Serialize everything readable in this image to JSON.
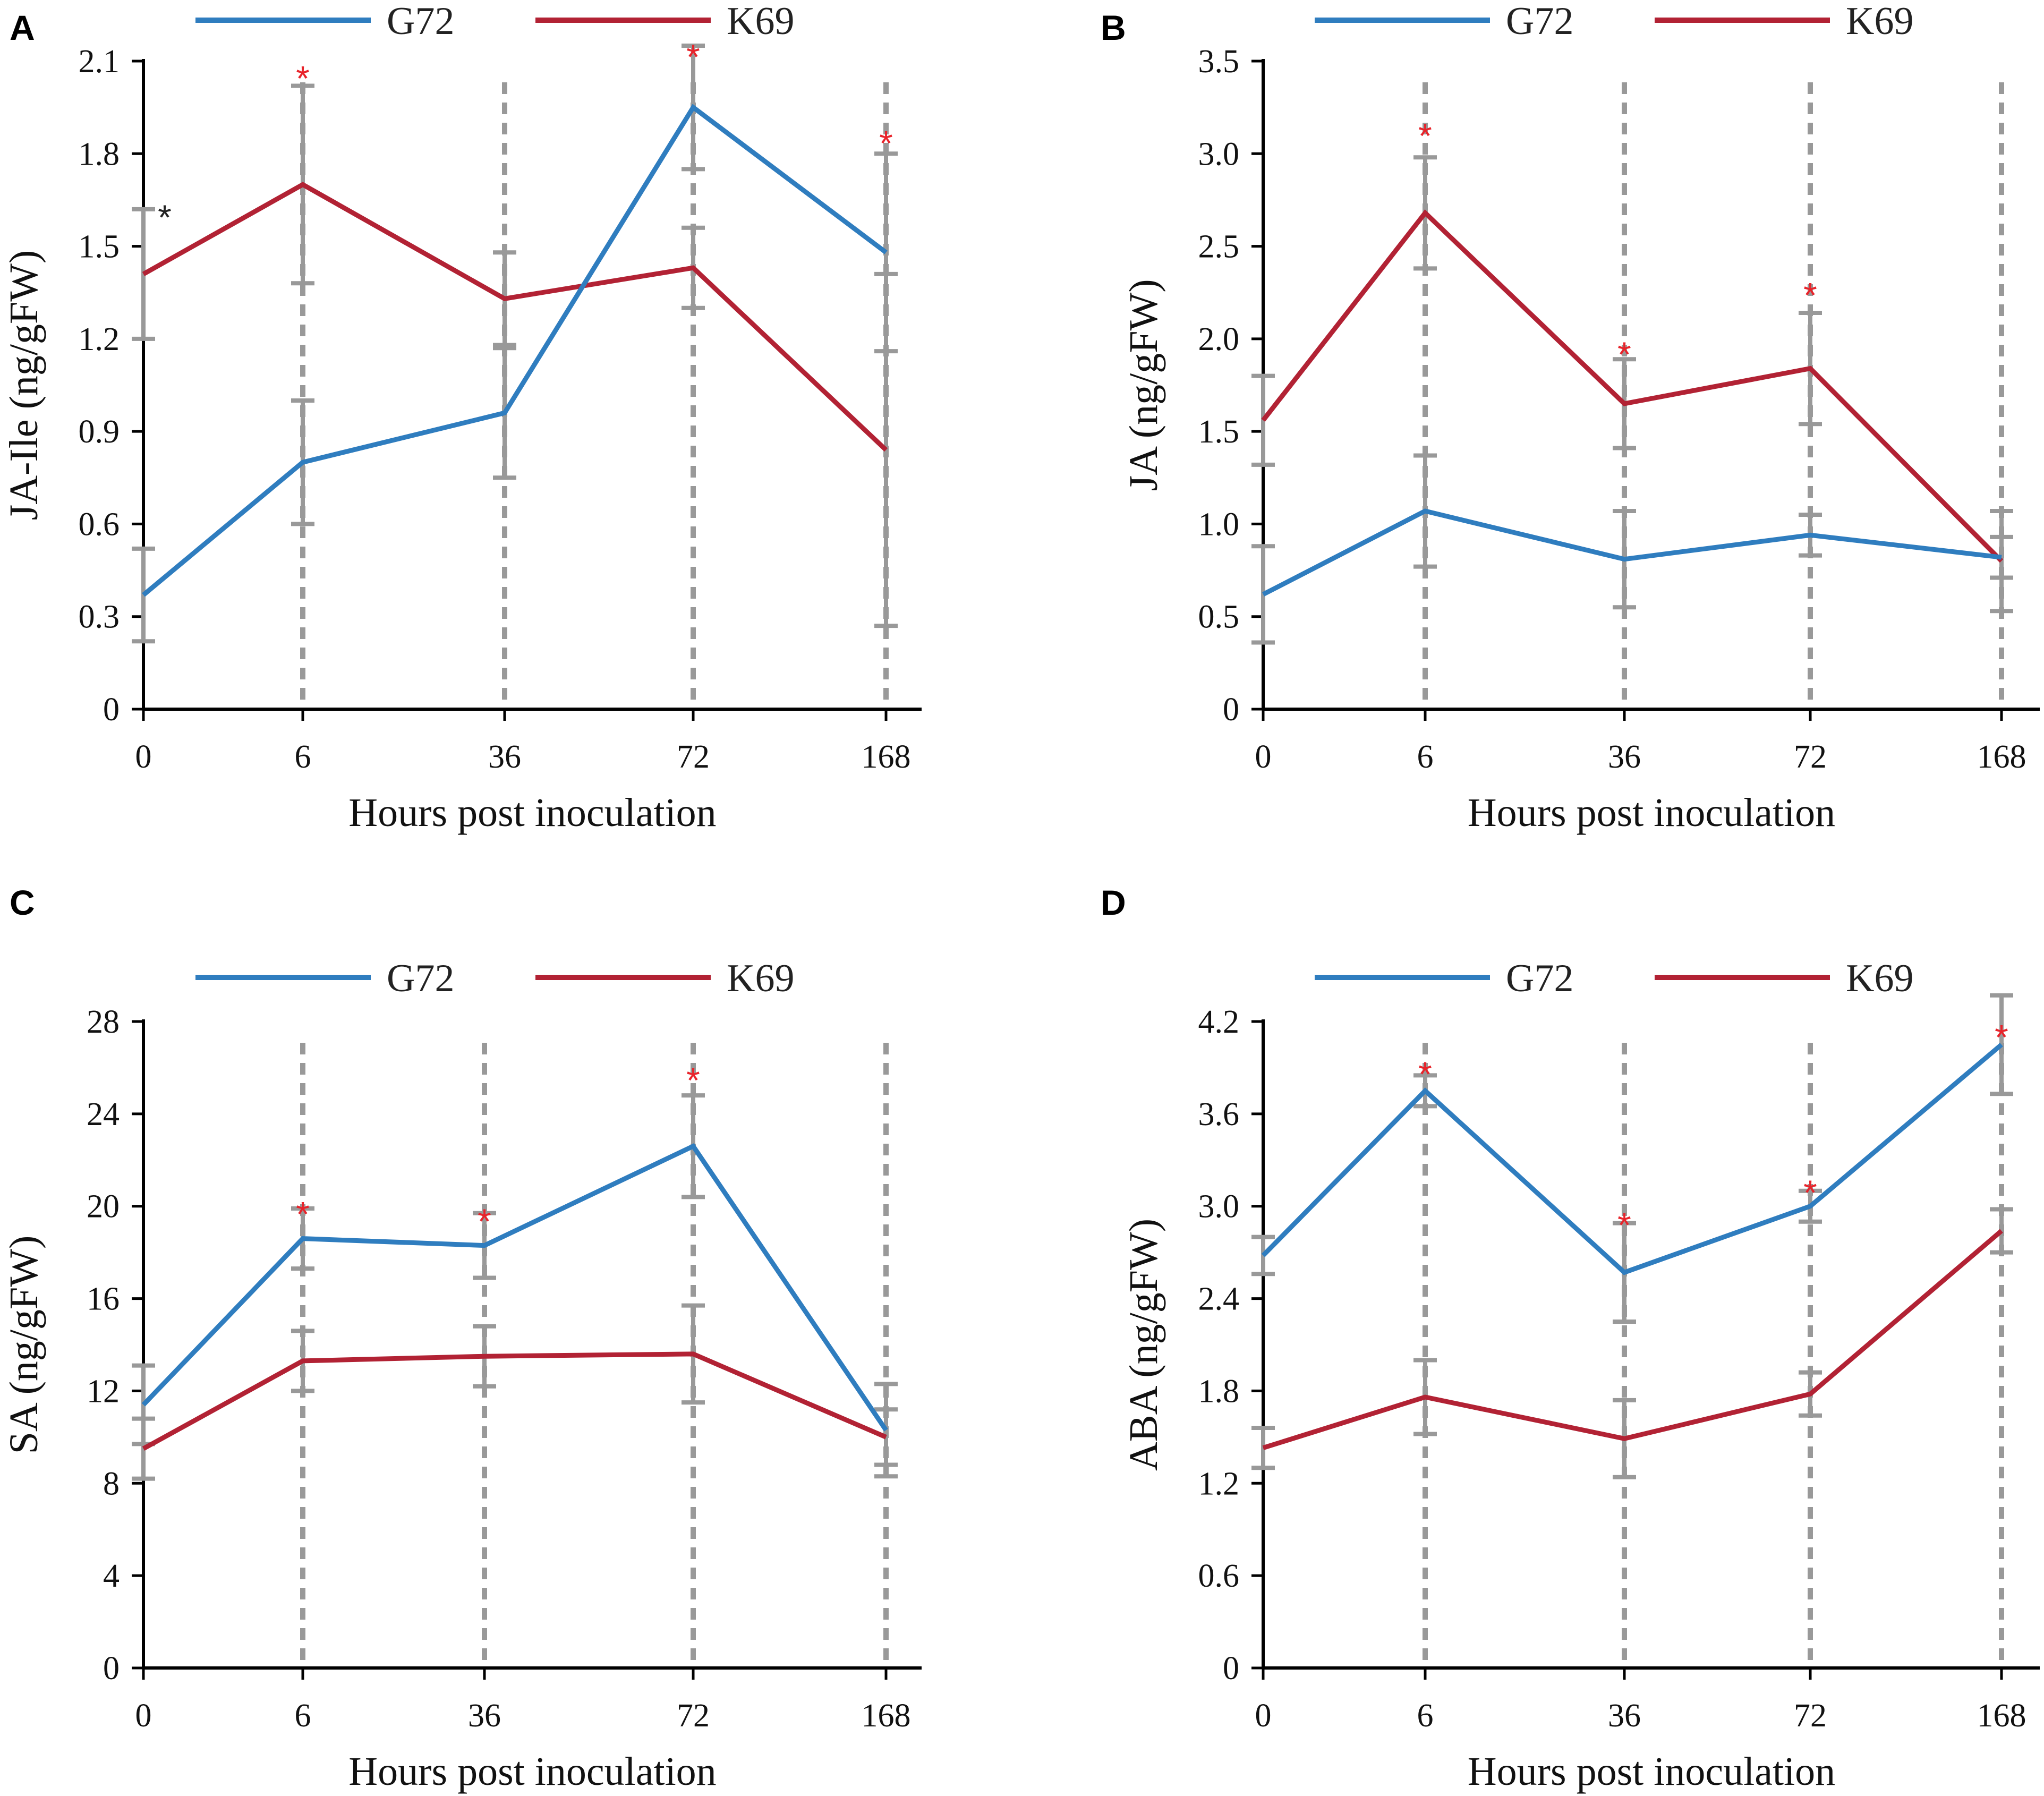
{
  "colors": {
    "g72": "#2F7DBF",
    "k69": "#B22234",
    "guide": "#999999",
    "sig_red": "#E8232A",
    "sig_black": "#222222"
  },
  "chart_data": [
    {
      "panel": "A",
      "type": "line",
      "categories": [
        "0",
        "6",
        "36",
        "72",
        "168"
      ],
      "xlabel": "Hours post inoculation",
      "ylabel": "JA-Ile (ng/gFW)",
      "ylim": [
        0,
        2.1
      ],
      "yticks": [
        "0",
        "0.3",
        "0.6",
        "0.9",
        "1.2",
        "1.5",
        "1.8",
        "2.1"
      ],
      "legend": [
        "G72",
        "K69"
      ],
      "series": [
        {
          "name": "G72",
          "values": [
            0.37,
            0.8,
            0.96,
            1.95,
            1.48
          ],
          "err": [
            0.15,
            0.2,
            0.21,
            0.2,
            0.32
          ]
        },
        {
          "name": "K69",
          "values": [
            1.41,
            1.7,
            1.33,
            1.43,
            0.84
          ],
          "err": [
            0.21,
            0.32,
            0.15,
            0.13,
            0.57
          ]
        }
      ],
      "significance": [
        {
          "x": 0,
          "value": 1.62,
          "mark": "*",
          "color": "black"
        },
        {
          "x": 1,
          "value": 2.07,
          "mark": "*",
          "color": "red"
        },
        {
          "x": 3,
          "value": 2.14,
          "mark": "*",
          "color": "red"
        },
        {
          "x": 4,
          "value": 1.86,
          "mark": "*",
          "color": "red"
        }
      ]
    },
    {
      "panel": "B",
      "type": "line",
      "categories": [
        "0",
        "6",
        "36",
        "72",
        "168"
      ],
      "xlabel": "Hours post inoculation",
      "ylabel": "JA (ng/gFW)",
      "ylim": [
        0,
        3.5
      ],
      "yticks": [
        "0",
        "0.5",
        "1.0",
        "1.5",
        "2.0",
        "2.5",
        "3.0",
        "3.5"
      ],
      "legend": [
        "G72",
        "K69"
      ],
      "series": [
        {
          "name": "G72",
          "values": [
            0.62,
            1.07,
            0.81,
            0.94,
            0.82
          ],
          "err": [
            0.26,
            0.3,
            0.26,
            0.11,
            0.11
          ]
        },
        {
          "name": "K69",
          "values": [
            1.56,
            2.68,
            1.65,
            1.84,
            0.8
          ],
          "err": [
            0.24,
            0.3,
            0.24,
            0.3,
            0.27
          ]
        }
      ],
      "significance": [
        {
          "x": 1,
          "value": 3.14,
          "mark": "*",
          "color": "red"
        },
        {
          "x": 2,
          "value": 1.96,
          "mark": "*",
          "color": "red"
        },
        {
          "x": 3,
          "value": 2.28,
          "mark": "*",
          "color": "red"
        }
      ]
    },
    {
      "panel": "C",
      "type": "line",
      "categories": [
        "0",
        "6",
        "36",
        "72",
        "168"
      ],
      "xlabel": "Hours post inoculation",
      "ylabel": "SA (ng/gFW)",
      "ylim": [
        0,
        28
      ],
      "yticks": [
        "0",
        "4",
        "8",
        "12",
        "16",
        "20",
        "24",
        "28"
      ],
      "legend": [
        "G72",
        "K69"
      ],
      "series": [
        {
          "name": "G72",
          "values": [
            11.4,
            18.6,
            18.3,
            22.6,
            10.3
          ],
          "err": [
            1.7,
            1.3,
            1.4,
            2.2,
            2.0
          ]
        },
        {
          "name": "K69",
          "values": [
            9.5,
            13.3,
            13.5,
            13.6,
            10.0
          ],
          "err": [
            1.3,
            1.3,
            1.3,
            2.1,
            1.2
          ]
        }
      ],
      "significance": [
        {
          "x": 1,
          "value": 20.0,
          "mark": "*",
          "color": "red"
        },
        {
          "x": 2,
          "value": 19.7,
          "mark": "*",
          "color": "red"
        },
        {
          "x": 3,
          "value": 25.8,
          "mark": "*",
          "color": "red"
        }
      ]
    },
    {
      "panel": "D",
      "type": "line",
      "categories": [
        "0",
        "6",
        "36",
        "72",
        "168"
      ],
      "xlabel": "Hours post inoculation",
      "ylabel": "ABA (ng/gFW)",
      "ylim": [
        0,
        4.2
      ],
      "yticks": [
        "0",
        "0.6",
        "1.2",
        "1.8",
        "2.4",
        "3.0",
        "3.6",
        "4.2"
      ],
      "legend": [
        "G72",
        "K69"
      ],
      "series": [
        {
          "name": "G72",
          "values": [
            2.68,
            3.75,
            2.57,
            3.0,
            4.05
          ],
          "err": [
            0.12,
            0.1,
            0.32,
            0.1,
            0.32
          ]
        },
        {
          "name": "K69",
          "values": [
            1.43,
            1.76,
            1.49,
            1.78,
            2.84
          ],
          "err": [
            0.13,
            0.24,
            0.25,
            0.14,
            0.14
          ]
        }
      ],
      "significance": [
        {
          "x": 1,
          "value": 3.91,
          "mark": "*",
          "color": "red"
        },
        {
          "x": 2,
          "value": 2.93,
          "mark": "*",
          "color": "red"
        },
        {
          "x": 3,
          "value": 3.14,
          "mark": "*",
          "color": "red"
        },
        {
          "x": 4,
          "value": 4.15,
          "mark": "*",
          "color": "red"
        }
      ]
    }
  ]
}
